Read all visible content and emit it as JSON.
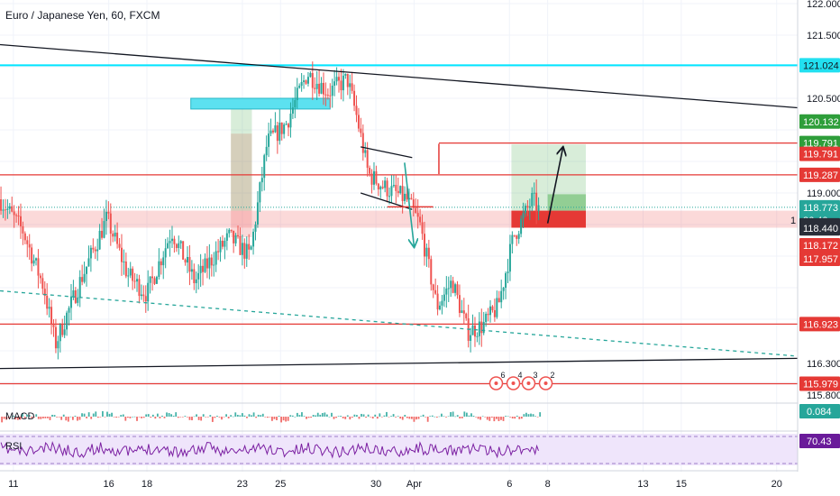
{
  "header": {
    "title": "Euro / Japanese Yen, 60, FXCM"
  },
  "colors": {
    "up": "#26a69a",
    "down": "#ef5350",
    "resistance": "#e53935",
    "cyan": "#00e5ff",
    "trend": "#131722",
    "target": "#3d9a3d",
    "rsi_bg": "#efe5fb",
    "rsi_line": "#7b1fa2",
    "macd_badge": "#26a69a",
    "rsi_badge": "#6a1b9a"
  },
  "chart_data": {
    "type": "candlestick",
    "symbol": "Euro / Japanese Yen",
    "timeframe": "60",
    "source": "FXCM",
    "ylim": [
      115.8,
      122.0
    ],
    "y_ticks": [
      "122.000",
      "121.500",
      "120.500",
      "119.000",
      "116.300",
      "115.800"
    ],
    "x_ticks": [
      "11",
      "16",
      "18",
      "23",
      "25",
      "30",
      "Apr",
      "6",
      "8",
      "13",
      "15",
      "20"
    ],
    "x_tick_days": [
      11,
      16,
      18,
      23,
      25,
      30,
      32,
      37,
      39,
      44,
      46,
      51
    ],
    "x_range_days": [
      10.3,
      52.1
    ],
    "data_end_day": 38.6,
    "price_path_days": [
      10.3,
      11.5,
      12.6,
      13.2,
      14.5,
      15.9,
      17.0,
      18.0,
      19.3,
      20.5,
      22.3,
      23.4,
      24.3,
      25.3,
      26.4,
      27.5,
      28.5,
      29.0,
      29.6,
      30.4,
      31.0,
      31.6,
      32.3,
      33.2,
      34.0,
      34.8,
      35.6,
      36.4,
      37.2,
      38.2,
      38.6
    ],
    "price_path_values": [
      118.9,
      118.4,
      117.5,
      116.6,
      117.6,
      118.6,
      117.7,
      117.4,
      118.4,
      117.6,
      118.3,
      118.0,
      119.8,
      120.1,
      120.9,
      120.6,
      120.8,
      120.2,
      119.3,
      119.1,
      119.0,
      118.9,
      118.5,
      117.2,
      117.6,
      116.8,
      116.9,
      117.2,
      118.3,
      118.9,
      118.7
    ],
    "horizontal_levels": [
      {
        "value": 121.024,
        "label": "121.024",
        "color": "cyan"
      },
      {
        "value": 119.791,
        "label": "119.791",
        "color": "red"
      },
      {
        "value": 119.287,
        "label": "119.287",
        "color": "red"
      },
      {
        "value": 116.923,
        "label": "116.923",
        "color": "red"
      },
      {
        "value": 115.979,
        "label": "115.979",
        "color": "red"
      }
    ],
    "axis_badges": [
      {
        "value": 121.024,
        "label": "121.024",
        "kind": "cyan"
      },
      {
        "value": 120.132,
        "label": "120.132",
        "kind": "green"
      },
      {
        "value": 119.791,
        "label": "119.791",
        "kind": "green"
      },
      {
        "value": 119.62,
        "label": "119.791",
        "kind": "red"
      },
      {
        "value": 119.287,
        "label": "119.287",
        "kind": "red"
      },
      {
        "value": 118.773,
        "label": "118.773",
        "kind": "teal"
      },
      {
        "value": 118.57,
        "label": "36:40",
        "kind": "teal",
        "prefix": "1"
      },
      {
        "value": 118.488,
        "label": "118.488",
        "kind": "dark"
      },
      {
        "value": 118.44,
        "label": "118.440",
        "kind": "dark"
      },
      {
        "value": 118.172,
        "label": "118.172",
        "kind": "red"
      },
      {
        "value": 117.957,
        "label": "117.957",
        "kind": "red"
      },
      {
        "value": 116.923,
        "label": "116.923",
        "kind": "red"
      },
      {
        "value": 115.979,
        "label": "115.979",
        "kind": "red"
      }
    ],
    "zones": [
      {
        "x": [
          10.3,
          52.1
        ],
        "y": [
          118.45,
          118.72
        ],
        "color": "red-light"
      },
      {
        "x": [
          22.4,
          23.5
        ],
        "y": [
          118.3,
          119.94
        ],
        "color": "red-light"
      },
      {
        "x": [
          22.4,
          23.5
        ],
        "y": [
          118.72,
          120.37
        ],
        "color": "green-light"
      },
      {
        "x": [
          20.3,
          27.6
        ],
        "y": [
          120.33,
          120.5
        ],
        "color": "cyan"
      },
      {
        "x": [
          37.1,
          41.0
        ],
        "y": [
          118.72,
          119.77
        ],
        "color": "green-light"
      },
      {
        "x": [
          39.0,
          41.0
        ],
        "y": [
          118.72,
          118.98
        ],
        "color": "green"
      },
      {
        "x": [
          37.1,
          41.0
        ],
        "y": [
          118.45,
          118.72
        ],
        "color": "red"
      }
    ],
    "trendlines": [
      {
        "points": [
          [
            10.3,
            121.35
          ],
          [
            52.1,
            120.35
          ]
        ],
        "color": "trend",
        "dashed": false
      },
      {
        "points": [
          [
            10.3,
            116.22
          ],
          [
            52.1,
            116.38
          ]
        ],
        "color": "trend",
        "dashed": false
      },
      {
        "points": [
          [
            10.3,
            117.45
          ],
          [
            51.9,
            116.42
          ]
        ],
        "color": "teal",
        "dashed": true
      },
      {
        "points": [
          [
            29.2,
            119.73
          ],
          [
            31.9,
            119.56
          ]
        ],
        "color": "trend",
        "dashed": false
      },
      {
        "points": [
          [
            29.2,
            119.0
          ],
          [
            31.9,
            118.74
          ]
        ],
        "color": "trend",
        "dashed": false
      },
      {
        "points": [
          [
            30.6,
            118.78
          ],
          [
            33.0,
            118.78
          ]
        ],
        "color": "red",
        "dashed": false
      },
      {
        "points": [
          [
            33.3,
            119.78
          ],
          [
            33.3,
            119.3
          ]
        ],
        "color": "red",
        "dashed": false
      }
    ],
    "arrows": [
      {
        "from": [
          31.5,
          119.48
        ],
        "to": [
          32.0,
          118.15
        ],
        "color": "teal"
      },
      {
        "from": [
          39.0,
          118.52
        ],
        "to": [
          39.8,
          119.72
        ],
        "color": "trend"
      }
    ],
    "markers": [
      {
        "x": 36.3,
        "value": 115.9,
        "label": "6"
      },
      {
        "x": 37.2,
        "value": 115.9,
        "label": "4"
      },
      {
        "x": 38.0,
        "value": 115.9,
        "label": "3"
      },
      {
        "x": 38.9,
        "value": 115.9,
        "label": "2"
      }
    ],
    "indicators": {
      "macd": {
        "label": "MACD",
        "value": "0.084"
      },
      "rsi": {
        "label": "RSI",
        "value": "70.43"
      }
    }
  }
}
